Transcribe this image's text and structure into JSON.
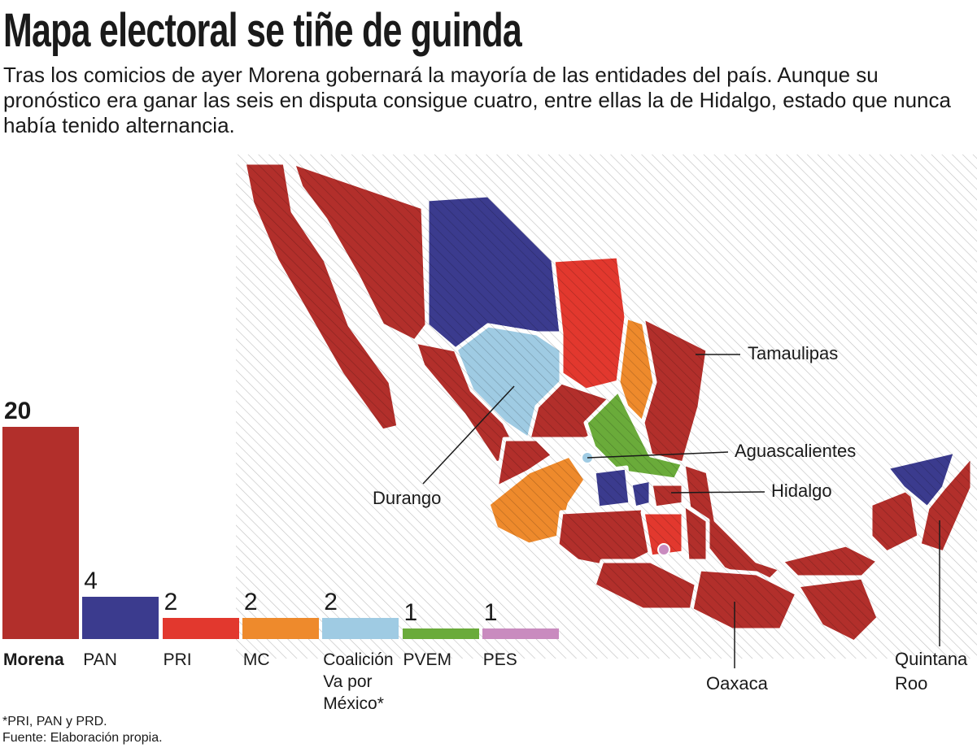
{
  "chart_data": {
    "type": "bar",
    "title": "Mapa electoral se tiñe de guinda",
    "subtitle": "Tras los comicios de ayer Morena  gobernará la mayoría de las entidades del país. Aunque su pronóstico era ganar las seis en disputa consigue cuatro, entre ellas la de Hidalgo, estado que nunca había tenido alternancia.",
    "categories": [
      "Morena",
      "PAN",
      "PRI",
      "MC",
      "Coalición Va por México*",
      "PVEM",
      "PES"
    ],
    "values": [
      20,
      4,
      2,
      2,
      2,
      1,
      1
    ],
    "colors": [
      "#b22f2b",
      "#3b3b8e",
      "#e2382e",
      "#ee8a2c",
      "#9fcbe3",
      "#6aab3a",
      "#c98bbf"
    ],
    "map_labels": [
      "Tamaulipas",
      "Aguascalientes",
      "Hidalgo",
      "Durango",
      "Oaxaca",
      "Quintana Roo"
    ],
    "footnotes": [
      "*PRI, PAN y PRD.",
      "Fuente: Elaboración propia."
    ]
  }
}
